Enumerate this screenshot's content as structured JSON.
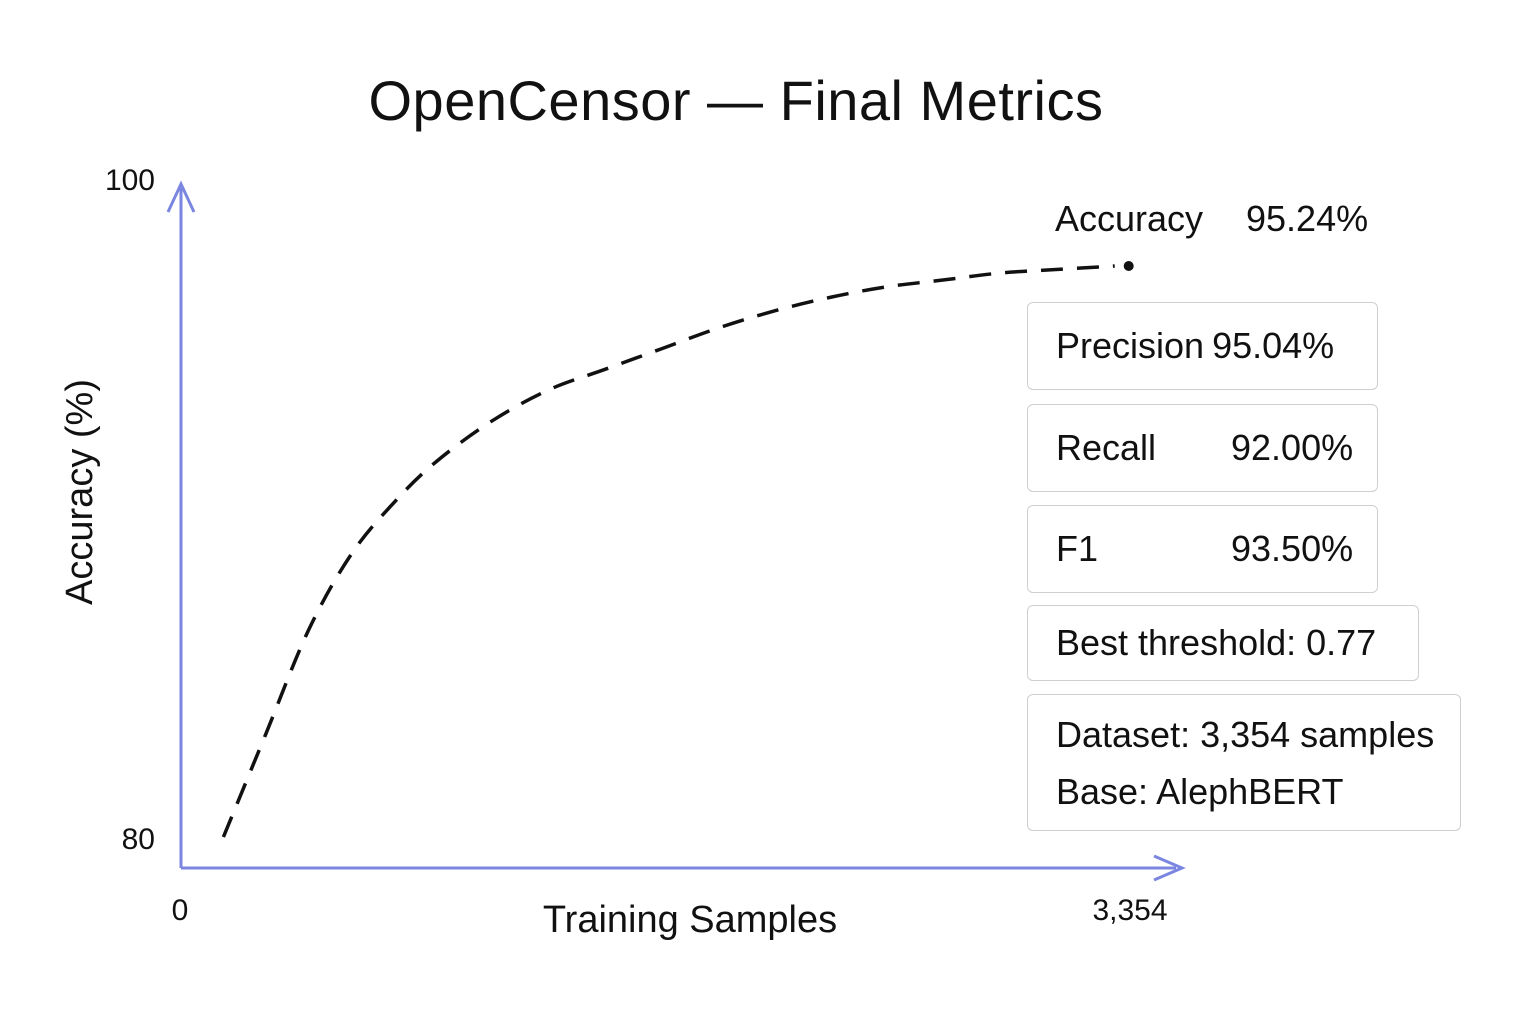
{
  "chart_data": {
    "type": "line",
    "title": "OpenCensor — Final Metrics",
    "xlabel": "Training Samples",
    "ylabel": "Accuracy (%)",
    "xlim": [
      0,
      3354
    ],
    "ylim": [
      80,
      100
    ],
    "x_ticks": [
      "0",
      "3,354"
    ],
    "y_ticks": [
      "100",
      "80"
    ],
    "series": [
      {
        "x": [
          150,
          300,
          450,
          600,
          750,
          900,
          1100,
          1300,
          1500,
          1700,
          1900,
          2100,
          2300,
          2500,
          2700,
          2900,
          3100,
          3300
        ],
        "y": [
          80.9,
          83.9,
          86.9,
          89.1,
          90.6,
          91.8,
          93.0,
          93.9,
          94.5,
          95.1,
          95.7,
          96.2,
          96.6,
          96.9,
          97.1,
          97.3,
          97.4,
          97.5
        ],
        "style": "dashed",
        "color": "#111111"
      }
    ],
    "annotations": [
      {
        "label": "Accuracy",
        "value": "95.24%"
      }
    ],
    "axis_color": "#7b86e0",
    "grid": false
  },
  "metrics": {
    "precision": {
      "label": "Precision",
      "value": "95.04%"
    },
    "recall": {
      "label": "Recall",
      "value": "92.00%"
    },
    "f1": {
      "label": "F1",
      "value": "93.50%"
    },
    "threshold": "Best threshold: 0.77",
    "dataset": "Dataset: 3,354 samples",
    "base": "Base: AlephBERT"
  }
}
